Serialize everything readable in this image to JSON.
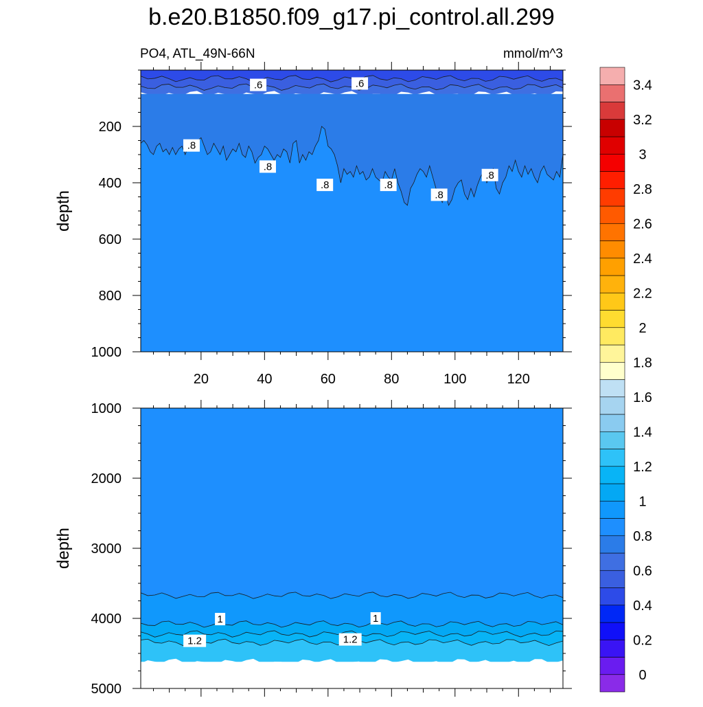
{
  "title": "b.e20.B1850.f09_g17.pi_control.all.299",
  "subtitle_left": "PO4, ATL_49N-66N",
  "subtitle_right": "mmol/m^3",
  "chart_data": [
    {
      "type": "heatmap",
      "panel": "upper",
      "ylabel": "depth",
      "xlim": [
        1,
        134
      ],
      "ylim": [
        1000,
        0
      ],
      "x_ticks": [
        20,
        40,
        60,
        80,
        100,
        120
      ],
      "y_ticks": [
        200,
        400,
        600,
        800,
        1000
      ],
      "layers": [
        {
          "level_range": "0.4-0.5",
          "color": "#2d4be8",
          "from_depth": 0,
          "to_depth": 30
        },
        {
          "level_range": "0.5-0.6",
          "color": "#3a5fe0",
          "from_depth": 30,
          "to_depth": 60
        },
        {
          "level_range": "0.6-0.7",
          "color": "#3f6fe2",
          "from_depth": 60,
          "to_depth": 85
        },
        {
          "level_range": "0.7-0.8",
          "color": "#2b7ce8",
          "from_depth": 85,
          "to_depth": 330
        },
        {
          "level_range": "0.8-0.9",
          "color": "#1e8ffe",
          "from_depth": 330,
          "to_depth": 1000
        }
      ],
      "contour_labels": [
        {
          "text": ".6",
          "x": 38,
          "depth": 55
        },
        {
          "text": ".6",
          "x": 70,
          "depth": 50
        },
        {
          "text": ".8",
          "x": 17,
          "depth": 270
        },
        {
          "text": ".8",
          "x": 41,
          "depth": 345
        },
        {
          "text": ".8",
          "x": 59,
          "depth": 410
        },
        {
          "text": ".8",
          "x": 79,
          "depth": 410
        },
        {
          "text": ".8",
          "x": 95,
          "depth": 445
        },
        {
          "text": ".8",
          "x": 111,
          "depth": 375
        }
      ],
      "contour_08_depth": [
        260,
        250,
        265,
        290,
        300,
        270,
        260,
        290,
        280,
        300,
        275,
        300,
        280,
        270,
        300,
        270,
        265,
        260,
        250,
        240,
        270,
        300,
        290,
        260,
        280,
        300,
        270,
        320,
        300,
        280,
        290,
        260,
        300,
        310,
        270,
        290,
        330,
        310,
        300,
        270,
        280,
        300,
        320,
        300,
        310,
        280,
        290,
        330,
        260,
        250,
        330,
        300,
        320,
        290,
        300,
        270,
        250,
        200,
        210,
        270,
        280,
        300,
        340,
        400,
        350,
        370,
        360,
        380,
        340,
        370,
        360,
        390,
        380,
        350,
        380,
        390,
        400,
        360,
        380,
        390,
        350,
        400,
        430,
        470,
        480,
        420,
        400,
        370,
        350,
        360,
        380,
        340,
        380,
        420,
        450,
        470,
        440,
        480,
        460,
        420,
        400,
        390,
        440,
        460,
        420,
        450,
        410,
        380,
        360,
        400,
        380,
        350,
        420,
        440,
        400,
        380,
        340,
        360,
        320,
        360,
        380,
        340,
        370,
        350,
        380,
        400,
        360,
        340,
        370,
        380,
        390,
        360,
        380,
        300
      ]
    },
    {
      "type": "heatmap",
      "panel": "lower",
      "ylabel": "depth",
      "xlim": [
        1,
        134
      ],
      "ylim": [
        5000,
        1000
      ],
      "y_ticks": [
        1000,
        2000,
        3000,
        4000,
        5000
      ],
      "layers": [
        {
          "level_range": "0.8-0.9",
          "color": "#1e8ffe",
          "from_depth": 1000,
          "to_depth": 3670
        },
        {
          "level_range": "0.9-1.0",
          "color": "#1098fc",
          "from_depth": 3670,
          "to_depth": 4080
        },
        {
          "level_range": "1.0-1.1",
          "color": "#04a8f4",
          "from_depth": 4080,
          "to_depth": 4220
        },
        {
          "level_range": "1.1-1.2",
          "color": "#08b4f6",
          "from_depth": 4220,
          "to_depth": 4340
        },
        {
          "level_range": "1.2-1.3",
          "color": "#2ec2f8",
          "from_depth": 4340,
          "to_depth": 4620
        }
      ],
      "missing_below_depth": 4620,
      "contour_labels": [
        {
          "text": "1",
          "x": 26,
          "depth": 4020
        },
        {
          "text": "1",
          "x": 75,
          "depth": 4010
        },
        {
          "text": "1.2",
          "x": 18,
          "depth": 4330
        },
        {
          "text": "1.2",
          "x": 67,
          "depth": 4310
        }
      ]
    }
  ],
  "colorbar": {
    "labels": [
      "0",
      "0.2",
      "0.4",
      "0.6",
      "0.8",
      "1",
      "1.2",
      "1.4",
      "1.6",
      "1.8",
      "2",
      "2.2",
      "2.4",
      "2.6",
      "2.8",
      "3",
      "3.2",
      "3.4"
    ],
    "colors": [
      "#8a2be8",
      "#6a1cf0",
      "#3a14f4",
      "#1010f8",
      "#0028f6",
      "#2d4be8",
      "#3a5fe0",
      "#3f6fe2",
      "#2b7ce8",
      "#1e8ffe",
      "#1098fc",
      "#04a8f4",
      "#08b4f6",
      "#2ec2f8",
      "#5ac8f0",
      "#8acbf0",
      "#a6d4f0",
      "#bfe0f4",
      "#ffffcc",
      "#fff59a",
      "#ffea60",
      "#ffdc30",
      "#ffc818",
      "#ffb20c",
      "#ffa000",
      "#ff8c00",
      "#ff7300",
      "#ff5a00",
      "#ff3c00",
      "#ff1e00",
      "#f50000",
      "#e00000",
      "#c80000",
      "#d93a3a",
      "#ea7070",
      "#f5aeae"
    ]
  }
}
